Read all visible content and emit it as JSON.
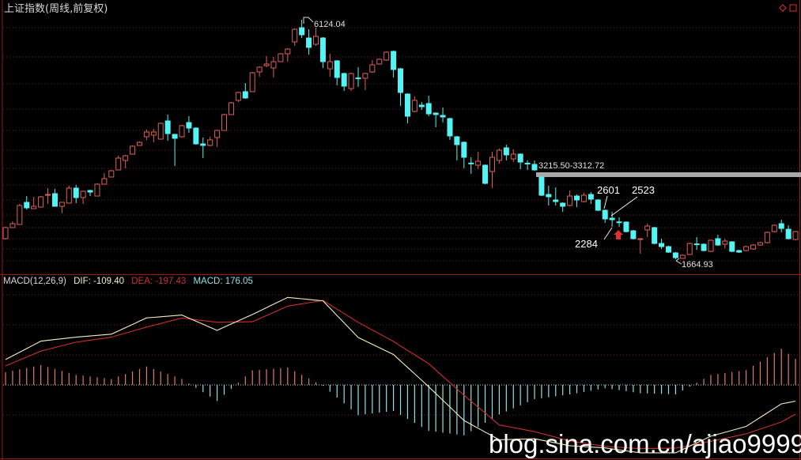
{
  "header": {
    "title": "上证指数(周线,前复权)",
    "corner_icons": [
      "diamond-icon",
      "square-icon"
    ]
  },
  "colors": {
    "up": "#e0605a",
    "down": "#54f4f4",
    "dif": "#f2f0c0",
    "dea": "#d0302a",
    "hist_up": "#e07a6a",
    "hist_down": "#8ee2e2",
    "grid": "#7a1a1a",
    "frame": "#a01818",
    "band": "#a8a8a8"
  },
  "annotations": {
    "high_label": "6124.04",
    "low_label": "1664.93",
    "band_label": "3215.50-3312.72",
    "mark_2601": "2601",
    "mark_2523": "2523",
    "mark_2284": "2284",
    "buy_arrow": "red-up-arrow-icon"
  },
  "indicator": {
    "name": "MACD(12,26,9)",
    "dif_label": "DIF: -109.40",
    "dea_label": "DEA: -197.43",
    "macd_label": "MACD: 176.05"
  },
  "watermark": "blog.sina.com.cn/ajiao9999",
  "chart_data": [
    {
      "type": "candlestick",
      "title": "上证指数(周线,前复权)",
      "ylim": [
        1600,
        6200
      ],
      "grid": true,
      "band": [
        3215.5,
        3312.72
      ],
      "fields": [
        "open",
        "high",
        "low",
        "close"
      ],
      "candles": [
        [
          2047,
          2268,
          2032,
          2253
        ],
        [
          2253,
          2370,
          2253,
          2326
        ],
        [
          2312,
          2694,
          2312,
          2665
        ],
        [
          2724,
          2841,
          2591,
          2621
        ],
        [
          2606,
          2827,
          2606,
          2650
        ],
        [
          2635,
          2841,
          2635,
          2827
        ],
        [
          2856,
          2989,
          2694,
          2870
        ],
        [
          2886,
          2974,
          2650,
          2650
        ],
        [
          2650,
          2724,
          2518,
          2724
        ],
        [
          2709,
          3033,
          2709,
          2989
        ],
        [
          2989,
          3048,
          2709,
          2812
        ],
        [
          2812,
          2944,
          2694,
          2930
        ],
        [
          2944,
          2960,
          2841,
          2915
        ],
        [
          2841,
          3077,
          2841,
          3062
        ],
        [
          3062,
          3268,
          3062,
          3165
        ],
        [
          3195,
          3327,
          3195,
          3312
        ],
        [
          3327,
          3592,
          3357,
          3548
        ],
        [
          3504,
          3607,
          3357,
          3592
        ],
        [
          3622,
          3784,
          3622,
          3769
        ],
        [
          3784,
          3857,
          3784,
          3842
        ],
        [
          3945,
          4078,
          3887,
          4034
        ],
        [
          3975,
          4093,
          3842,
          4034
        ],
        [
          3901,
          4210,
          3901,
          4196
        ],
        [
          4240,
          4358,
          3872,
          4004
        ],
        [
          3990,
          3990,
          3401,
          3916
        ],
        [
          3945,
          4166,
          3931,
          4152
        ],
        [
          4210,
          4328,
          4019,
          4107
        ],
        [
          4107,
          4122,
          3798,
          3813
        ],
        [
          3813,
          3931,
          3548,
          3784
        ],
        [
          3784,
          3945,
          3769,
          3887
        ],
        [
          3931,
          4078,
          3754,
          4063
        ],
        [
          4063,
          4372,
          4063,
          4358
        ],
        [
          4358,
          4593,
          4358,
          4578
        ],
        [
          4623,
          4785,
          4593,
          4770
        ],
        [
          4785,
          4946,
          4652,
          4667
        ],
        [
          4785,
          5152,
          4785,
          5138
        ],
        [
          5152,
          5256,
          5064,
          5241
        ],
        [
          5270,
          5447,
          5241,
          5300
        ],
        [
          5226,
          5432,
          5049,
          5344
        ],
        [
          5344,
          5506,
          5344,
          5491
        ],
        [
          5491,
          5594,
          5344,
          5579
        ],
        [
          5712,
          5962,
          5638,
          5947
        ],
        [
          5977,
          6124.04,
          5785,
          5844
        ],
        [
          5785,
          5947,
          5476,
          5609
        ],
        [
          5668,
          5977,
          5638,
          5815
        ],
        [
          5785,
          5800,
          5226,
          5344
        ],
        [
          5211,
          5491,
          5064,
          5344
        ],
        [
          5359,
          5373,
          4902,
          5049
        ],
        [
          5123,
          5138,
          4799,
          4888
        ],
        [
          4843,
          5138,
          4799,
          5123
        ],
        [
          5040,
          5241,
          4873,
          5030
        ],
        [
          5035,
          5138,
          4814,
          5123
        ],
        [
          5152,
          5373,
          5138,
          5285
        ],
        [
          5300,
          5403,
          5285,
          5388
        ],
        [
          5373,
          5535,
          5359,
          5521
        ],
        [
          5535,
          5550,
          5049,
          5197
        ],
        [
          5211,
          5226,
          4520,
          4770
        ],
        [
          4740,
          4755,
          4196,
          4328
        ],
        [
          4417,
          4696,
          4402,
          4623
        ],
        [
          4534,
          4593,
          4446,
          4505
        ],
        [
          4564,
          4711,
          4328,
          4372
        ],
        [
          4387,
          4400,
          4122,
          4358
        ],
        [
          4343,
          4490,
          4210,
          4313
        ],
        [
          4284,
          4299,
          3887,
          3960
        ],
        [
          3945,
          3960,
          3504,
          3798
        ],
        [
          3842,
          3857,
          3357,
          3563
        ],
        [
          3455,
          3563,
          3254,
          3440
        ],
        [
          3415,
          3666,
          3342,
          3489
        ],
        [
          3415,
          3430,
          3062,
          3077
        ],
        [
          3298,
          3666,
          2989,
          3563
        ],
        [
          3504,
          3725,
          3445,
          3695
        ],
        [
          3739,
          3798,
          3504,
          3607
        ],
        [
          3533,
          3710,
          3474,
          3622
        ],
        [
          3622,
          3637,
          3342,
          3474
        ],
        [
          3452,
          3504,
          3327,
          3440
        ],
        [
          3430,
          3504,
          3312,
          3327
        ],
        [
          3195,
          3210,
          2841,
          2856
        ],
        [
          2871,
          3033,
          2665,
          2827
        ],
        [
          2768,
          3003,
          2665,
          2738
        ],
        [
          2709,
          2724,
          2547,
          2650
        ],
        [
          2665,
          2944,
          2650,
          2841
        ],
        [
          2841,
          2871,
          2635,
          2768
        ],
        [
          2738,
          2900,
          2724,
          2856
        ],
        [
          2871,
          2915,
          2694,
          2783
        ],
        [
          2768,
          2783,
          2561,
          2576
        ],
        [
          2576,
          2591,
          2341,
          2415
        ],
        [
          2429,
          2547,
          2268,
          2400
        ],
        [
          2360,
          2444,
          2268,
          2350
        ],
        [
          2356,
          2370,
          2164,
          2179
        ],
        [
          2194,
          2209,
          2032,
          2047
        ],
        [
          2032,
          2055,
          1767,
          2047
        ],
        [
          2209,
          2326,
          2076,
          2282
        ],
        [
          2253,
          2268,
          1944,
          1958
        ],
        [
          1958,
          2047,
          1855,
          1899
        ],
        [
          1899,
          1914,
          1782,
          1796
        ],
        [
          1782,
          1797,
          1664.93,
          1693
        ],
        [
          1680,
          1752,
          1675,
          1738
        ],
        [
          1752,
          1973,
          1752,
          1958
        ],
        [
          1950,
          2076,
          1841,
          1940
        ],
        [
          1944,
          1958,
          1811,
          1826
        ],
        [
          1811,
          2032,
          1796,
          2017
        ],
        [
          2047,
          2120,
          1914,
          1929
        ],
        [
          1944,
          2047,
          1870,
          2002
        ],
        [
          1988,
          2002,
          1796,
          1811
        ],
        [
          1826,
          1841,
          1782,
          1796
        ],
        [
          1826,
          1914,
          1811,
          1899
        ],
        [
          1855,
          1944,
          1841,
          1929
        ],
        [
          1929,
          1988,
          1914,
          1973
        ],
        [
          1973,
          2179,
          1958,
          2164
        ],
        [
          2179,
          2312,
          2164,
          2297
        ],
        [
          2326,
          2400,
          2164,
          2238
        ],
        [
          2223,
          2297,
          2032,
          2047
        ],
        [
          2032,
          2194,
          2017,
          2179
        ]
      ]
    },
    {
      "type": "line",
      "title": "MACD(12,26,9)",
      "ylim": [
        -600,
        700
      ],
      "series_names": [
        "DIF",
        "DEA",
        "MACD"
      ],
      "points": [
        {
          "bar": 1,
          "dif": 171,
          "dea": 128
        },
        {
          "bar": 6,
          "dif": 295,
          "dea": 228
        },
        {
          "bar": 11,
          "dif": 322,
          "dea": 288
        },
        {
          "bar": 16,
          "dif": 342,
          "dea": 322
        },
        {
          "bar": 21,
          "dif": 452,
          "dea": 390
        },
        {
          "bar": 26,
          "dif": 471,
          "dea": 451
        },
        {
          "bar": 31,
          "dif": 368,
          "dea": 422
        },
        {
          "bar": 36,
          "dif": 475,
          "dea": 426
        },
        {
          "bar": 41,
          "dif": 590,
          "dea": 531
        },
        {
          "bar": 46,
          "dif": 567,
          "dea": 570
        },
        {
          "bar": 51,
          "dif": 320,
          "dea": 422
        },
        {
          "bar": 56,
          "dif": 205,
          "dea": 293
        },
        {
          "bar": 61,
          "dif": -12,
          "dea": 143
        },
        {
          "bar": 66,
          "dif": -240,
          "dea": -70
        },
        {
          "bar": 71,
          "dif": -370,
          "dea": -270
        },
        {
          "bar": 76,
          "dif": -363,
          "dea": -315
        },
        {
          "bar": 81,
          "dif": -410,
          "dea": -378
        },
        {
          "bar": 86,
          "dif": -425,
          "dea": -414
        },
        {
          "bar": 91,
          "dif": -458,
          "dea": -430
        },
        {
          "bar": 96,
          "dif": -458,
          "dea": -426
        },
        {
          "bar": 101,
          "dif": -346,
          "dea": -380
        },
        {
          "bar": 106,
          "dif": -280,
          "dea": -330
        },
        {
          "bar": 111,
          "dif": -128,
          "dea": -250
        },
        {
          "bar": 113,
          "dif": -109.4,
          "dea": -197.43
        }
      ]
    }
  ]
}
